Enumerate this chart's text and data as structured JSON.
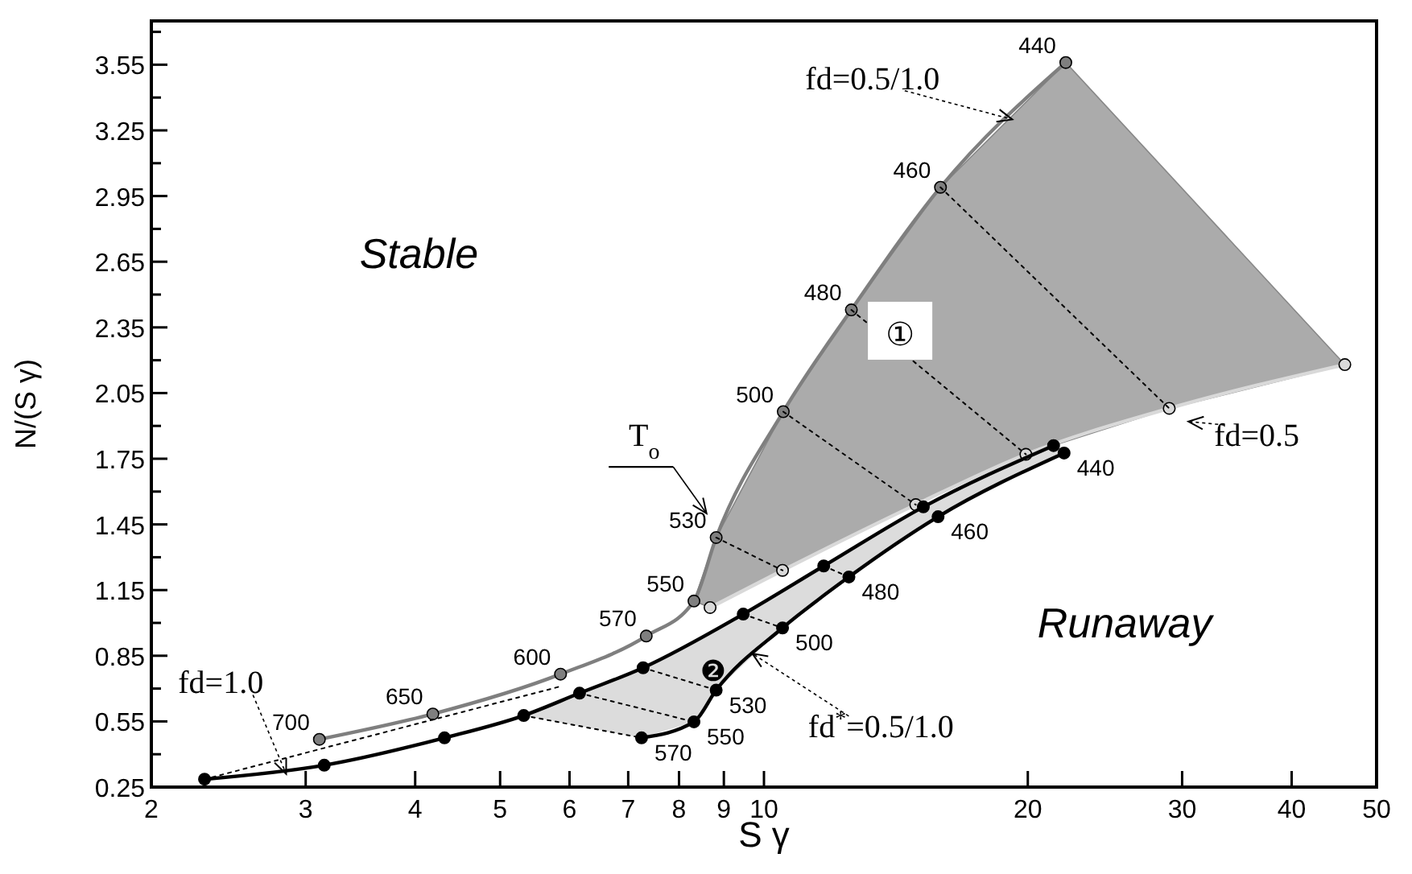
{
  "chart_data": {
    "type": "line",
    "xlabel": "S γ",
    "ylabel": "N/(S γ)",
    "log": "x",
    "xlim": [
      2,
      50
    ],
    "xticks": [
      2,
      3,
      4,
      5,
      6,
      7,
      8,
      9,
      10,
      20,
      30,
      40,
      50
    ],
    "ylim": [
      0.25,
      3.75
    ],
    "yticks": [
      0.25,
      {
        "value": 0.4,
        "label": null
      },
      0.55,
      {
        "value": 0.7,
        "label": null
      },
      0.85,
      {
        "value": 1.0,
        "label": null
      },
      1.15,
      {
        "value": 1.3,
        "label": null
      },
      1.45,
      {
        "value": 1.6,
        "label": null
      },
      1.75,
      {
        "value": 1.9,
        "label": null
      },
      2.05,
      {
        "value": 2.2,
        "label": null
      },
      2.35,
      {
        "value": 2.5,
        "label": null
      },
      2.65,
      {
        "value": 2.8,
        "label": null
      },
      2.95,
      {
        "value": 3.1,
        "label": null
      },
      3.25,
      {
        "value": 3.4,
        "label": null
      },
      3.55,
      {
        "value": 3.7,
        "label": null
      }
    ],
    "grid": false,
    "marker": "circle",
    "line_style": "solid",
    "series": [
      {
        "color": "#7f7f7f",
        "x": [
          3.11,
          4.19,
          5.86,
          7.34,
          8.32,
          8.82,
          10.52,
          12.58,
          15.9,
          22.1
        ],
        "values": [
          0.468,
          0.584,
          0.766,
          0.94,
          1.1,
          1.39,
          1.965,
          2.43,
          2.99,
          3.56
        ]
      },
      {
        "color": "#d9d9d9",
        "x": [
          46.0,
          29.0,
          19.9,
          14.9,
          10.5,
          8.68
        ],
        "values": [
          2.18,
          1.98,
          1.77,
          1.54,
          1.24,
          1.07
        ]
      },
      {
        "color": "#000000",
        "x": [
          2.3,
          3.15,
          4.32,
          5.32,
          6.16,
          7.28,
          9.47,
          11.7,
          15.2,
          21.4
        ],
        "values": [
          0.286,
          0.35,
          0.475,
          0.577,
          0.679,
          0.795,
          1.04,
          1.26,
          1.53,
          1.81
        ]
      },
      {
        "color": "#000000",
        "x": [
          22.0,
          15.8,
          12.5,
          10.5,
          8.82,
          8.32,
          7.25
        ],
        "values": [
          1.776,
          1.485,
          1.21,
          0.977,
          0.693,
          0.548,
          0.475
        ]
      },
      {
        "color": "#000000",
        "marker": "none",
        "line_style": "dotted",
        "x": [
          15.9,
          29.0,
          null,
          12.58,
          19.9,
          null,
          10.52,
          14.9,
          null,
          8.82,
          10.5,
          null,
          11.7,
          12.5,
          null,
          9.47,
          10.5,
          null,
          7.28,
          8.82,
          null,
          6.16,
          8.32,
          null,
          5.32,
          7.25,
          null,
          2.3,
          5.86
        ],
        "values": [
          2.99,
          1.98,
          null,
          2.43,
          1.77,
          null,
          1.965,
          1.54,
          null,
          1.39,
          1.24,
          null,
          1.26,
          1.21,
          null,
          1.04,
          0.977,
          null,
          0.795,
          0.693,
          null,
          0.679,
          0.548,
          null,
          0.577,
          0.475,
          null,
          0.286,
          0.71
        ]
      }
    ],
    "annotations": [
      "Stable",
      "Runaway",
      "T$_{o}$",
      {
        "text": "fd=0.5/1.0",
        "x": 19.2,
        "y": 3.3
      },
      "fd=0.5",
      {
        "text": "fd=1.0",
        "x": 2.85,
        "y": 0.31
      },
      {
        "text": "fd$^{*}$=0.5/1.0",
        "x": 9.7,
        "y": 0.86
      },
      "①",
      "❷",
      {
        "text": "700",
        "x": 3.11,
        "y": 0.468
      },
      {
        "text": "650",
        "x": 4.19,
        "y": 0.584
      },
      {
        "text": "600",
        "x": 5.86,
        "y": 0.766
      },
      {
        "text": "570",
        "x": 7.34,
        "y": 0.94
      },
      {
        "text": "550",
        "x": 8.32,
        "y": 1.1
      },
      {
        "text": "530",
        "x": 8.82,
        "y": 1.39
      },
      {
        "text": "500",
        "x": 10.52,
        "y": 1.965
      },
      {
        "text": "480",
        "x": 12.58,
        "y": 2.43
      },
      {
        "text": "460",
        "x": 15.9,
        "y": 2.99
      },
      {
        "text": "440",
        "x": 22.1,
        "y": 3.56
      },
      {
        "text": "440",
        "x": 22.0,
        "y": 1.776
      },
      {
        "text": "460",
        "x": 15.8,
        "y": 1.485
      },
      {
        "text": "480",
        "x": 12.5,
        "y": 1.21
      },
      {
        "text": "500",
        "x": 10.5,
        "y": 0.977
      },
      {
        "text": "530",
        "x": 8.82,
        "y": 0.693
      },
      {
        "text": "550",
        "x": 8.32,
        "y": 0.548
      },
      {
        "text": "570",
        "x": 7.25,
        "y": 0.475
      }
    ]
  }
}
